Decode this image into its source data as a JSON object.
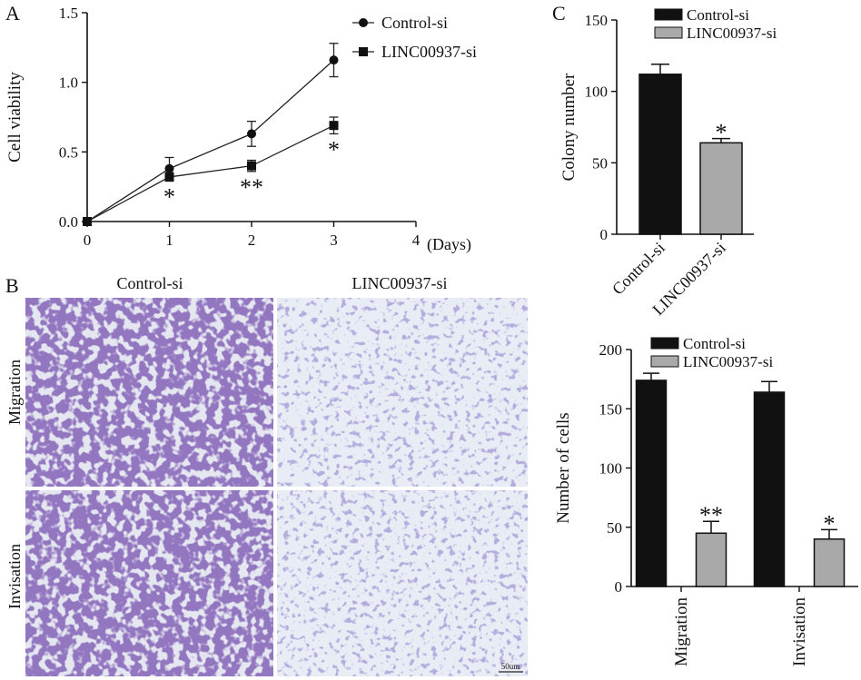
{
  "panel_labels": {
    "a": "A",
    "b": "B",
    "c": "C"
  },
  "photo_panel": {
    "col_labels": [
      "Control-si",
      "LINC00937-si"
    ],
    "row_labels": [
      "Migration",
      "Invisation"
    ],
    "scale_bar": "50um",
    "colors": {
      "dense_stain": "#4a2e86",
      "light_stain": "#8f86c4",
      "background": "#e9ecf4"
    }
  },
  "chart_data": [
    {
      "id": "A",
      "type": "line",
      "xlabel": "(Days)",
      "ylabel": "Cell viability",
      "xlim": [
        0,
        4
      ],
      "ylim": [
        0,
        1.5
      ],
      "xticks": [
        "0",
        "1",
        "2",
        "3",
        "4"
      ],
      "yticks": [
        "0.0",
        "0.5",
        "1.0",
        "1.5"
      ],
      "legend_position": "top-right",
      "series": [
        {
          "name": "Control-si",
          "marker": "circle",
          "x": [
            0,
            1,
            2,
            3
          ],
          "y": [
            0.0,
            0.38,
            0.63,
            1.16
          ],
          "err": [
            0,
            0.08,
            0.09,
            0.12
          ]
        },
        {
          "name": "LINC00937-si",
          "marker": "square",
          "x": [
            0,
            1,
            2,
            3
          ],
          "y": [
            0.0,
            0.32,
            0.4,
            0.69
          ],
          "err": [
            0,
            0.03,
            0.04,
            0.06
          ]
        }
      ],
      "annotations": [
        {
          "x": 1,
          "text": "*"
        },
        {
          "x": 2,
          "text": "**"
        },
        {
          "x": 3,
          "text": "*"
        }
      ]
    },
    {
      "id": "C-top",
      "type": "bar",
      "ylabel": "Colony number",
      "ylim": [
        0,
        150
      ],
      "yticks": [
        "0",
        "50",
        "100",
        "150"
      ],
      "categories": [
        "Control-si",
        "LINC00937-si"
      ],
      "values": [
        112,
        64
      ],
      "err": [
        7,
        3
      ],
      "colors": [
        "#111111",
        "#a9a9a9"
      ],
      "annotations": [
        "",
        "*"
      ],
      "legend": [
        "Control-si",
        "LINC00937-si"
      ],
      "legend_position": "top"
    },
    {
      "id": "C-bottom",
      "type": "bar",
      "ylabel": "Number of cells",
      "ylim": [
        0,
        200
      ],
      "yticks": [
        "0",
        "50",
        "100",
        "150",
        "200"
      ],
      "categories": [
        "Migration",
        "Invisation"
      ],
      "series": [
        {
          "name": "Control-si",
          "values": [
            174,
            164
          ],
          "err": [
            6,
            9
          ],
          "color": "#111111"
        },
        {
          "name": "LINC00937-si",
          "values": [
            45,
            40
          ],
          "err": [
            10,
            8
          ],
          "color": "#a9a9a9"
        }
      ],
      "annotations": [
        [
          "",
          "**"
        ],
        [
          "",
          "*"
        ]
      ],
      "legend_position": "top-right"
    }
  ]
}
